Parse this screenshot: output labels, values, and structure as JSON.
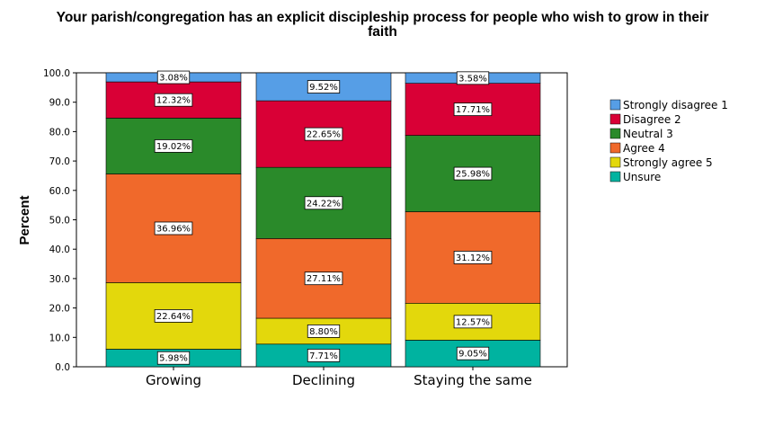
{
  "chart_data": {
    "type": "bar",
    "stacked": true,
    "title": "Your parish/congregation has an explicit discipleship process for people who wish to grow in their faith",
    "title_lines": [
      "Your parish/congregation has an explicit discipleship process for people who wish to grow in their",
      "faith"
    ],
    "xlabel": "",
    "ylabel": "Percent",
    "ylim": [
      0,
      100
    ],
    "yticks": [
      "0.0",
      "10.0",
      "20.0",
      "30.0",
      "40.0",
      "50.0",
      "60.0",
      "70.0",
      "80.0",
      "90.0",
      "100.0"
    ],
    "categories": [
      "Growing",
      "Declining",
      "Staying the same"
    ],
    "legend_position": "right",
    "series": [
      {
        "name": "Unsure",
        "color": "#00b3a0",
        "values": [
          5.98,
          7.71,
          9.05
        ],
        "labels": [
          "5.98%",
          "7.71%",
          "9.05%"
        ]
      },
      {
        "name": "Strongly agree 5",
        "color": "#e3d80c",
        "values": [
          22.64,
          8.8,
          12.57
        ],
        "labels": [
          "22.64%",
          "8.80%",
          "12.57%"
        ]
      },
      {
        "name": "Agree 4",
        "color": "#f0692b",
        "values": [
          36.96,
          27.11,
          31.12
        ],
        "labels": [
          "36.96%",
          "27.11%",
          "31.12%"
        ]
      },
      {
        "name": "Neutral 3",
        "color": "#2a8a2a",
        "values": [
          19.02,
          24.22,
          25.98
        ],
        "labels": [
          "19.02%",
          "24.22%",
          "25.98%"
        ]
      },
      {
        "name": "Disagree 2",
        "color": "#d90036",
        "values": [
          12.32,
          22.65,
          17.71
        ],
        "labels": [
          "12.32%",
          "22.65%",
          "17.71%"
        ]
      },
      {
        "name": "Strongly disagree 1",
        "color": "#569ee6",
        "values": [
          3.08,
          9.52,
          3.58
        ],
        "labels": [
          "3.08%",
          "9.52%",
          "3.58%"
        ]
      }
    ],
    "legend_order": [
      "Strongly disagree 1",
      "Disagree 2",
      "Neutral 3",
      "Agree 4",
      "Strongly agree 5",
      "Unsure"
    ]
  }
}
